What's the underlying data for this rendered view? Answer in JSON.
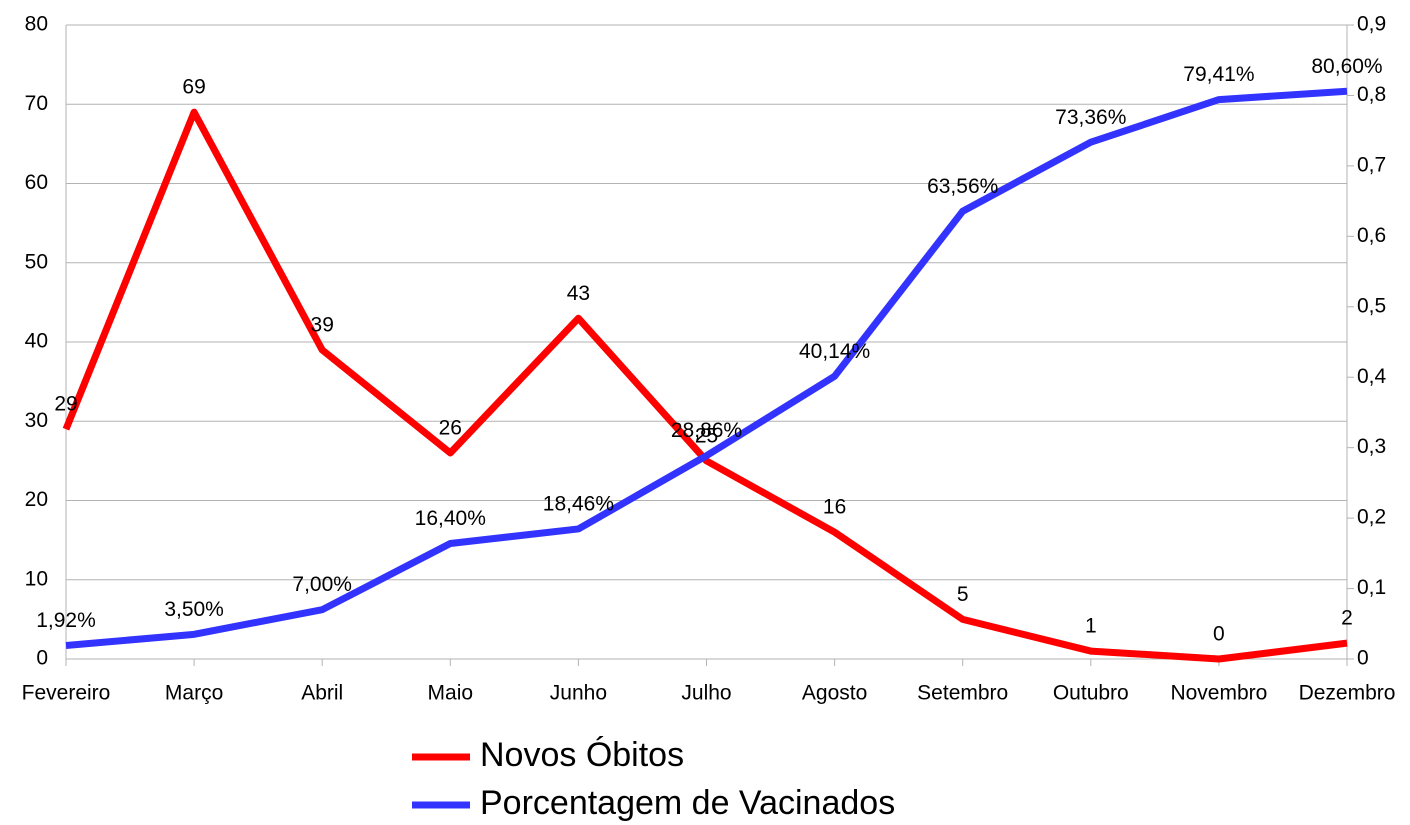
{
  "chart_data": {
    "type": "line",
    "categories": [
      "Fevereiro",
      "Março",
      "Abril",
      "Maio",
      "Junho",
      "Julho",
      "Agosto",
      "Setembro",
      "Outubro",
      "Novembro",
      "Dezembro"
    ],
    "series": [
      {
        "name": "Novos Óbitos",
        "color": "#ff0000",
        "values": [
          29,
          69,
          39,
          26,
          43,
          25,
          16,
          5,
          1,
          0,
          2
        ]
      },
      {
        "name": "Porcentagem de Vacinados",
        "color": "#3333ff",
        "axis": "y2",
        "values": [
          0.0192,
          0.035,
          0.07,
          0.164,
          0.1846,
          0.2886,
          0.4014,
          0.6356,
          0.7336,
          0.7941,
          0.806
        ],
        "value_labels": [
          "1,92%",
          "3,50%",
          "7,00%",
          "16,40%",
          "18,46%",
          "28,86%",
          "40,14%",
          "63,56%",
          "73,36%",
          "79,41%",
          "80,60%"
        ]
      }
    ],
    "ylim": [
      0,
      80
    ],
    "yticks": [
      0,
      10,
      20,
      30,
      40,
      50,
      60,
      70,
      80
    ],
    "y2lim": [
      0,
      0.9
    ],
    "y2ticks": [
      0,
      {
        "value": 0.1,
        "label": "0,1"
      },
      {
        "value": 0.2,
        "label": "0,2"
      },
      {
        "value": 0.3,
        "label": "0,3"
      },
      {
        "value": 0.4,
        "label": "0,4"
      },
      {
        "value": 0.5,
        "label": "0,5"
      },
      {
        "value": 0.6,
        "label": "0,6"
      },
      {
        "value": 0.7,
        "label": "0,7"
      },
      {
        "value": 0.8,
        "label": "0,8"
      },
      {
        "value": 0.9,
        "label": "0,9"
      }
    ],
    "grid": true,
    "legend": "bottom"
  }
}
